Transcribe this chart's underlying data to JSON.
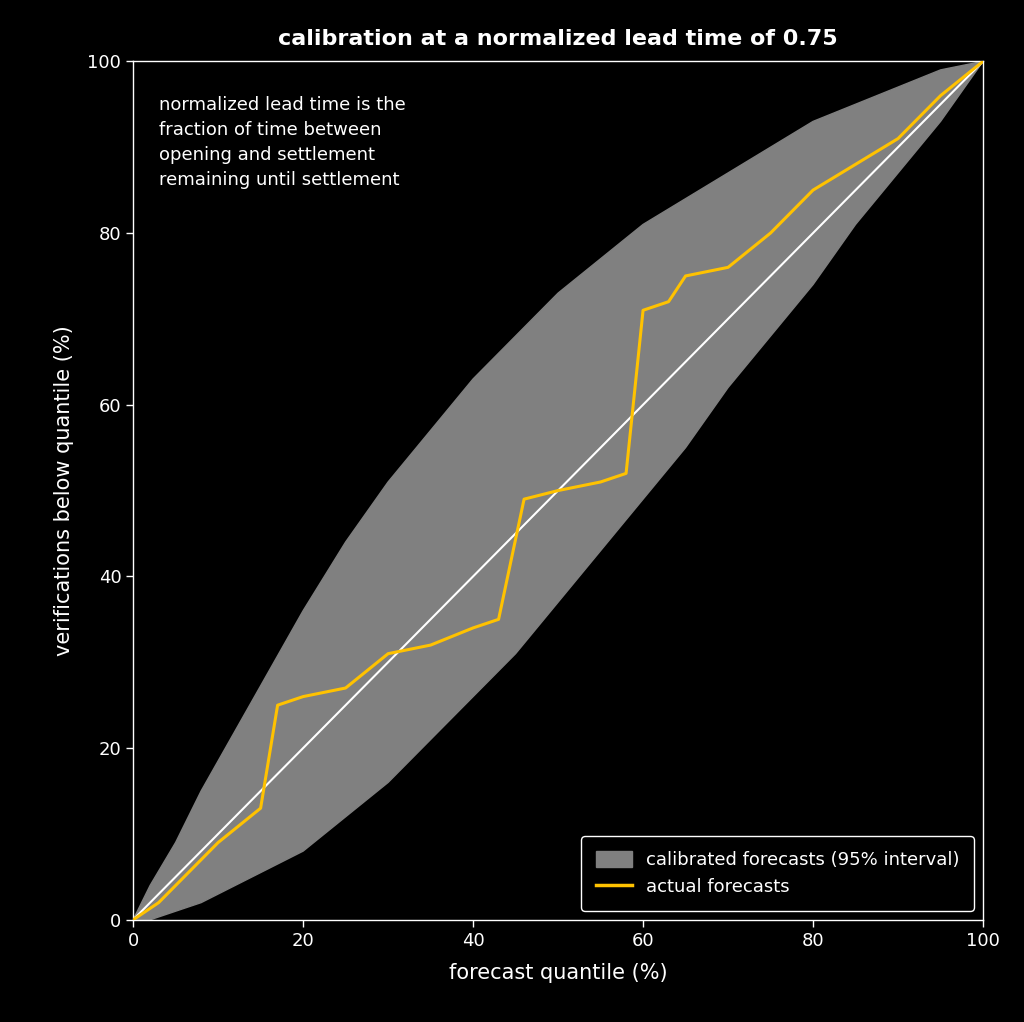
{
  "title": "calibration at a normalized lead time of 0.75",
  "xlabel": "forecast quantile (%)",
  "ylabel": "verifications below quantile (%)",
  "annotation": "normalized lead time is the\nfraction of time between\nopening and settlement\nremaining until settlement",
  "background_color": "#000000",
  "plot_bg_color": "#000000",
  "gray_fill_color": "#808080",
  "diagonal_color": "#ffffff",
  "forecast_line_color": "#FFC200",
  "legend_bg_color": "#000000",
  "legend_text_color": "#ffffff",
  "title_color": "#ffffff",
  "axis_text_color": "#ffffff",
  "annotation_color": "#ffffff",
  "xlim": [
    0,
    100
  ],
  "ylim": [
    0,
    100
  ],
  "xticks": [
    0,
    20,
    40,
    60,
    80,
    100
  ],
  "yticks": [
    0,
    20,
    40,
    60,
    80,
    100
  ],
  "gray_upper_x": [
    0,
    2,
    5,
    8,
    12,
    16,
    20,
    25,
    30,
    35,
    40,
    45,
    50,
    55,
    60,
    65,
    70,
    75,
    80,
    85,
    90,
    95,
    100
  ],
  "gray_upper_y": [
    0,
    4,
    9,
    15,
    22,
    29,
    36,
    44,
    51,
    57,
    63,
    68,
    73,
    77,
    81,
    84,
    87,
    90,
    93,
    95,
    97,
    99,
    100
  ],
  "gray_lower_x": [
    0,
    2,
    5,
    8,
    12,
    16,
    20,
    25,
    30,
    35,
    40,
    45,
    50,
    55,
    60,
    65,
    70,
    75,
    80,
    85,
    90,
    95,
    100
  ],
  "gray_lower_y": [
    0,
    0,
    1,
    2,
    4,
    6,
    8,
    12,
    16,
    21,
    26,
    31,
    37,
    43,
    49,
    55,
    62,
    68,
    74,
    81,
    87,
    93,
    100
  ],
  "forecast_x": [
    0,
    3,
    6,
    10,
    15,
    17,
    20,
    25,
    30,
    35,
    40,
    43,
    46,
    50,
    55,
    58,
    60,
    63,
    65,
    70,
    75,
    80,
    85,
    90,
    95,
    100
  ],
  "forecast_y": [
    0,
    2,
    5,
    9,
    13,
    25,
    26,
    27,
    31,
    32,
    34,
    35,
    49,
    50,
    51,
    52,
    71,
    72,
    75,
    76,
    80,
    85,
    88,
    91,
    96,
    100
  ]
}
